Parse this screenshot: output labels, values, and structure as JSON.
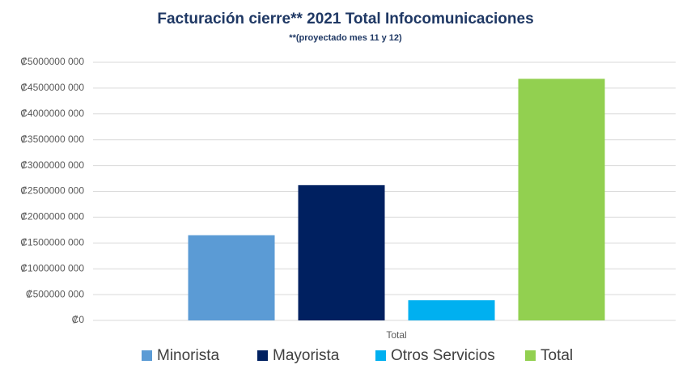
{
  "chart_data": {
    "type": "bar",
    "title": "Facturación cierre** 2021 Total Infocomunicaciones",
    "subtitle": "**(proyectado mes 11 y 12)",
    "categories": [
      "Total"
    ],
    "series": [
      {
        "name": "Minorista",
        "color": "#5b9bd5",
        "values": [
          1650000000
        ]
      },
      {
        "name": "Mayorista",
        "color": "#002060",
        "values": [
          2620000000
        ]
      },
      {
        "name": "Otros Servicios",
        "color": "#00b0f0",
        "values": [
          390000000
        ]
      },
      {
        "name": "Total",
        "color": "#92d050",
        "values": [
          4680000000
        ]
      }
    ],
    "ylim": [
      0,
      5000000000
    ],
    "yticks": [
      {
        "value": 0,
        "label": "₡0"
      },
      {
        "value": 500000000,
        "label": "₡500000 000"
      },
      {
        "value": 1000000000,
        "label": "₡1000000 000"
      },
      {
        "value": 1500000000,
        "label": "₡1500000 000"
      },
      {
        "value": 2000000000,
        "label": "₡2000000 000"
      },
      {
        "value": 2500000000,
        "label": "₡2500000 000"
      },
      {
        "value": 3000000000,
        "label": "₡3000000 000"
      },
      {
        "value": 3500000000,
        "label": "₡3500000 000"
      },
      {
        "value": 4000000000,
        "label": "₡4000000 000"
      },
      {
        "value": 4500000000,
        "label": "₡4500000 000"
      },
      {
        "value": 5000000000,
        "label": "₡5000000 000"
      }
    ],
    "grid": true,
    "legend": "bottom"
  }
}
